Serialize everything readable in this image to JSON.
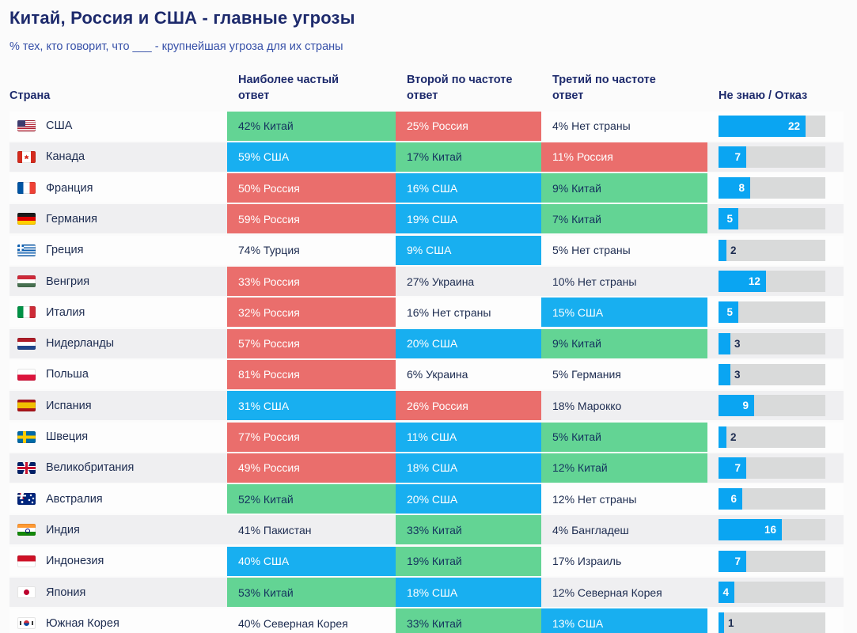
{
  "chart_data": {
    "type": "table",
    "title": "Китай, Россия и США - главные угрозы",
    "subtitle": "% тех, кто говорит, что ___ - крупнейшая угроза для их страны",
    "columns": [
      "Страна",
      "Наиболее частый ответ",
      "Второй по частоте ответ",
      "Третий по частоте ответ",
      "Не знаю / Отказ"
    ],
    "dk_axis_max": 27,
    "rows": [
      {
        "country": "США",
        "flag": "us",
        "answers": [
          {
            "text": "42% Китай",
            "color": "green"
          },
          {
            "text": "25% Россия",
            "color": "red"
          },
          {
            "text": "4% Нет страны",
            "color": "none"
          }
        ],
        "dk": 22
      },
      {
        "country": "Канада",
        "flag": "ca",
        "answers": [
          {
            "text": "59% США",
            "color": "blue"
          },
          {
            "text": "17% Китай",
            "color": "green"
          },
          {
            "text": "11% Россия",
            "color": "red"
          }
        ],
        "dk": 7
      },
      {
        "country": "Франция",
        "flag": "fr",
        "answers": [
          {
            "text": "50% Россия",
            "color": "red"
          },
          {
            "text": "16% США",
            "color": "blue"
          },
          {
            "text": "9% Китай",
            "color": "green"
          }
        ],
        "dk": 8
      },
      {
        "country": "Германия",
        "flag": "de",
        "answers": [
          {
            "text": "59% Россия",
            "color": "red"
          },
          {
            "text": "19% США",
            "color": "blue"
          },
          {
            "text": "7% Китай",
            "color": "green"
          }
        ],
        "dk": 5
      },
      {
        "country": "Греция",
        "flag": "gr",
        "answers": [
          {
            "text": "74% Турция",
            "color": "none"
          },
          {
            "text": "9% США",
            "color": "blue"
          },
          {
            "text": "5% Нет страны",
            "color": "none"
          }
        ],
        "dk": 2
      },
      {
        "country": "Венгрия",
        "flag": "hu",
        "answers": [
          {
            "text": "33% Россия",
            "color": "red"
          },
          {
            "text": "27% Украина",
            "color": "none"
          },
          {
            "text": "10% Нет страны",
            "color": "none"
          }
        ],
        "dk": 12
      },
      {
        "country": "Италия",
        "flag": "it",
        "answers": [
          {
            "text": "32% Россия",
            "color": "red"
          },
          {
            "text": "16% Нет страны",
            "color": "none"
          },
          {
            "text": "15% США",
            "color": "blue"
          }
        ],
        "dk": 5
      },
      {
        "country": "Нидерланды",
        "flag": "nl",
        "answers": [
          {
            "text": "57% Россия",
            "color": "red"
          },
          {
            "text": "20% США",
            "color": "blue"
          },
          {
            "text": "9% Китай",
            "color": "green"
          }
        ],
        "dk": 3
      },
      {
        "country": "Польша",
        "flag": "pl",
        "answers": [
          {
            "text": "81% Россия",
            "color": "red"
          },
          {
            "text": "6% Украина",
            "color": "none"
          },
          {
            "text": "5% Германия",
            "color": "none"
          }
        ],
        "dk": 3
      },
      {
        "country": "Испания",
        "flag": "es",
        "answers": [
          {
            "text": "31% США",
            "color": "blue"
          },
          {
            "text": "26% Россия",
            "color": "red"
          },
          {
            "text": "18% Марокко",
            "color": "none"
          }
        ],
        "dk": 9
      },
      {
        "country": "Швеция",
        "flag": "se",
        "answers": [
          {
            "text": "77% Россия",
            "color": "red"
          },
          {
            "text": "11% США",
            "color": "blue"
          },
          {
            "text": "5% Китай",
            "color": "green"
          }
        ],
        "dk": 2
      },
      {
        "country": "Великобритания",
        "flag": "gb",
        "answers": [
          {
            "text": "49% Россия",
            "color": "red"
          },
          {
            "text": "18% США",
            "color": "blue"
          },
          {
            "text": "12% Китай",
            "color": "green"
          }
        ],
        "dk": 7
      },
      {
        "country": "Австралия",
        "flag": "au",
        "answers": [
          {
            "text": "52% Китай",
            "color": "green"
          },
          {
            "text": "20% США",
            "color": "blue"
          },
          {
            "text": "12% Нет страны",
            "color": "none"
          }
        ],
        "dk": 6
      },
      {
        "country": "Индия",
        "flag": "in",
        "answers": [
          {
            "text": "41% Пакистан",
            "color": "none"
          },
          {
            "text": "33% Китай",
            "color": "green"
          },
          {
            "text": "4% Бангладеш",
            "color": "none"
          }
        ],
        "dk": 16
      },
      {
        "country": "Индонезия",
        "flag": "id",
        "answers": [
          {
            "text": "40% США",
            "color": "blue"
          },
          {
            "text": "19% Китай",
            "color": "green"
          },
          {
            "text": "17% Израиль",
            "color": "none"
          }
        ],
        "dk": 7
      },
      {
        "country": "Япония",
        "flag": "jp",
        "answers": [
          {
            "text": "53% Китай",
            "color": "green"
          },
          {
            "text": "18% США",
            "color": "blue"
          },
          {
            "text": "12% Северная Корея",
            "color": "none"
          }
        ],
        "dk": 4
      },
      {
        "country": "Южная Корея",
        "flag": "kr",
        "answers": [
          {
            "text": "40% Северная Корея",
            "color": "none"
          },
          {
            "text": "33% Китай",
            "color": "green"
          },
          {
            "text": "13% США",
            "color": "blue"
          }
        ],
        "dk": 1
      }
    ]
  },
  "palette": {
    "green": "#63d494",
    "red": "#ea6e6c",
    "blue": "#18aff0",
    "bar_fill": "#0aa5f2",
    "bar_track": "#d9dada",
    "title_navy": "#1d2a6c",
    "subtitle_blue": "#3650a8"
  }
}
